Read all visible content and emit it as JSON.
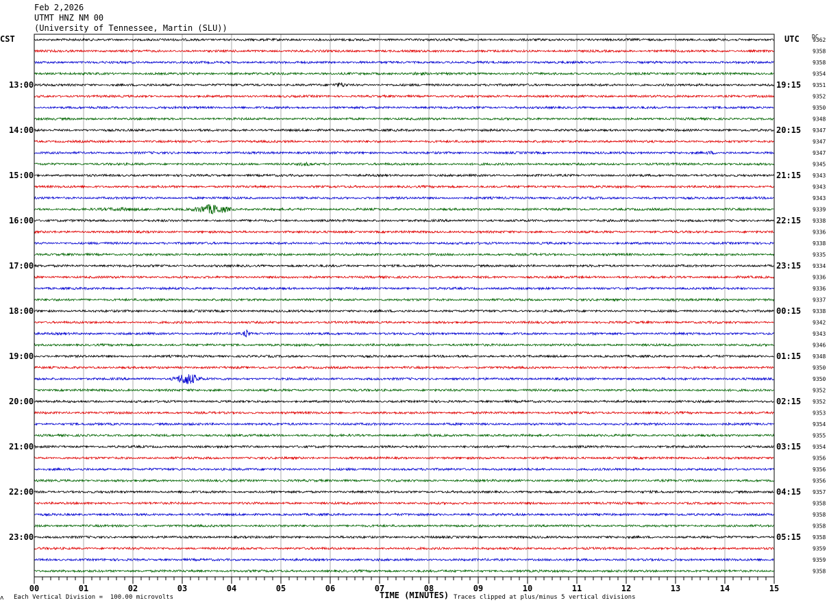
{
  "header": {
    "date": "Feb 2,2026",
    "station": "UTMT HNZ NM 00",
    "institution": "(University of Tennessee, Martin (SLU))"
  },
  "left_label": "CST",
  "right_label": "UTC",
  "dc_label": "DC",
  "footer": {
    "scale_note": "Each Vertical Division =  100.00 microvolts",
    "xlabel": "TIME (MINUTES)",
    "clip_note": "Traces clipped at plus/minus 5 vertical divisions"
  },
  "colors": {
    "cycle": [
      "#000000",
      "#e00000",
      "#0000d0",
      "#006400"
    ],
    "grid": "#888888"
  },
  "chart_data": {
    "type": "line",
    "title": "UTMT HNZ NM 00",
    "xlabel": "TIME (MINUTES)",
    "x_ticks": [
      "00",
      "01",
      "02",
      "03",
      "04",
      "05",
      "06",
      "07",
      "08",
      "09",
      "10",
      "11",
      "12",
      "13",
      "14",
      "15"
    ],
    "xlim": [
      0,
      15
    ],
    "row_minutes": 15,
    "rows": 48,
    "left_hour_labels": [
      {
        "row": 4,
        "label": "13:00"
      },
      {
        "row": 8,
        "label": "14:00"
      },
      {
        "row": 12,
        "label": "15:00"
      },
      {
        "row": 16,
        "label": "16:00"
      },
      {
        "row": 20,
        "label": "17:00"
      },
      {
        "row": 24,
        "label": "18:00"
      },
      {
        "row": 28,
        "label": "19:00"
      },
      {
        "row": 32,
        "label": "20:00"
      },
      {
        "row": 36,
        "label": "21:00"
      },
      {
        "row": 40,
        "label": "22:00"
      },
      {
        "row": 44,
        "label": "23:00"
      }
    ],
    "right_hour_labels": [
      {
        "row": 4,
        "label": "19:15"
      },
      {
        "row": 8,
        "label": "20:15"
      },
      {
        "row": 12,
        "label": "21:15"
      },
      {
        "row": 16,
        "label": "22:15"
      },
      {
        "row": 20,
        "label": "23:15"
      },
      {
        "row": 24,
        "label": "00:15"
      },
      {
        "row": 28,
        "label": "01:15"
      },
      {
        "row": 32,
        "label": "02:15"
      },
      {
        "row": 36,
        "label": "03:15"
      },
      {
        "row": 40,
        "label": "04:15"
      },
      {
        "row": 44,
        "label": "05:15"
      }
    ],
    "dc_values": [
      "9362",
      "9358",
      "9358",
      "9354",
      "9351",
      "9352",
      "9350",
      "9348",
      "9347",
      "9347",
      "9347",
      "9345",
      "9343",
      "9343",
      "9343",
      "9339",
      "9338",
      "9336",
      "9338",
      "9335",
      "9334",
      "9336",
      "9336",
      "9337",
      "9338",
      "9342",
      "9343",
      "9346",
      "9348",
      "9350",
      "9350",
      "9352",
      "9352",
      "9353",
      "9354",
      "9355",
      "9354",
      "9356",
      "9356",
      "9356",
      "9357",
      "9358",
      "9358",
      "9358",
      "9358",
      "9359",
      "9359",
      "9358"
    ],
    "events": [
      {
        "row": 4,
        "minute": 6.2,
        "amplitude": 4,
        "duration": 0.3
      },
      {
        "row": 15,
        "minute": 1.8,
        "amplitude": 3,
        "duration": 1.5
      },
      {
        "row": 15,
        "minute": 3.6,
        "amplitude": 8,
        "duration": 0.6
      },
      {
        "row": 11,
        "minute": 5.5,
        "amplitude": 3,
        "duration": 0.4
      },
      {
        "row": 26,
        "minute": 4.3,
        "amplitude": 7,
        "duration": 0.1
      },
      {
        "row": 30,
        "minute": 3.1,
        "amplitude": 10,
        "duration": 0.4
      },
      {
        "row": 3,
        "minute": 7.8,
        "amplitude": 3,
        "duration": 0.4
      },
      {
        "row": 10,
        "minute": 13.7,
        "amplitude": 3,
        "duration": 0.3
      }
    ]
  }
}
